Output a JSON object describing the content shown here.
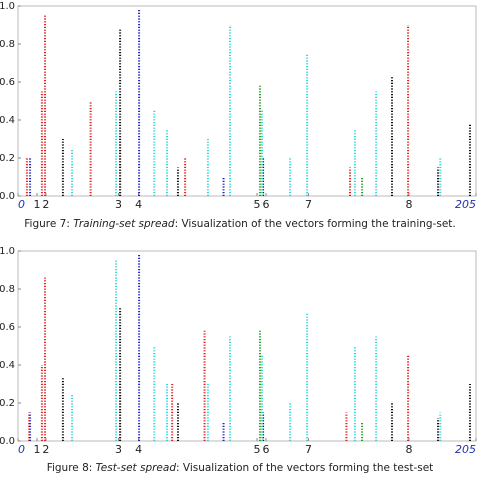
{
  "chart_data": [
    {
      "type": "strip",
      "xlim": [
        0,
        205
      ],
      "ylim": [
        0,
        1
      ],
      "xticks": [
        {
          "value": 0,
          "label": "0"
        },
        {
          "value": 8.5,
          "label": "1"
        },
        {
          "value": 12.5,
          "label": "2"
        },
        {
          "value": 45,
          "label": "3"
        },
        {
          "value": 54,
          "label": "4"
        },
        {
          "value": 107,
          "label": "5"
        },
        {
          "value": 111,
          "label": "6"
        },
        {
          "value": 130,
          "label": "7"
        },
        {
          "value": 175,
          "label": "8"
        },
        {
          "value": 205,
          "label": "205"
        }
      ],
      "yticks": [
        {
          "value": 0,
          "label": "0.0"
        },
        {
          "value": 0.2,
          "label": "0.2"
        },
        {
          "value": 0.4,
          "label": "0.4"
        },
        {
          "value": 0.6,
          "label": "0.6"
        },
        {
          "value": 0.8,
          "label": "0.8"
        },
        {
          "value": 1,
          "label": "1.0"
        }
      ],
      "series": [
        {
          "color": "#e02020",
          "x": [
            12.1,
            10.7,
            174.6,
            45.7,
            74.8,
            148.6,
            4,
            32.5
          ],
          "values": [
            0.95,
            0.55,
            0.9,
            0.3,
            0.2,
            0.15,
            0.2,
            0.5
          ]
        },
        {
          "color": "#111111",
          "x": [
            45.7,
            20.1,
            167.4,
            202.3,
            109.7,
            71.6,
            188
          ],
          "values": [
            0.88,
            0.3,
            0.63,
            0.38,
            0.2,
            0.15,
            0.15
          ]
        },
        {
          "color": "#30d8d8",
          "x": [
            129.4,
            94.9,
            43.9,
            66.7,
            109.2,
            150.8,
            24.2,
            85,
            121.8,
            189,
            160.3,
            61
          ],
          "values": [
            0.75,
            0.9,
            0.55,
            0.35,
            0.45,
            0.35,
            0.25,
            0.3,
            0.2,
            0.2,
            0.55,
            0.45
          ]
        },
        {
          "color": "#2020c8",
          "x": [
            54.2,
            5.4,
            92
          ],
          "values": [
            0.98,
            0.2,
            0.1
          ]
        },
        {
          "color": "#20a020",
          "x": [
            108.3,
            154
          ],
          "values": [
            0.58,
            0.1
          ]
        }
      ],
      "caption": {
        "label": "Figure 7: ",
        "emph": "Training-set spread",
        "rest": ": Visualization of the vectors forming the training-set."
      }
    },
    {
      "type": "strip",
      "xlim": [
        0,
        205
      ],
      "ylim": [
        0,
        1
      ],
      "xticks": [
        {
          "value": 0,
          "label": "0"
        },
        {
          "value": 8.5,
          "label": "1"
        },
        {
          "value": 12.5,
          "label": "2"
        },
        {
          "value": 45,
          "label": "3"
        },
        {
          "value": 54,
          "label": "4"
        },
        {
          "value": 107,
          "label": "5"
        },
        {
          "value": 111,
          "label": "6"
        },
        {
          "value": 130,
          "label": "7"
        },
        {
          "value": 175,
          "label": "8"
        },
        {
          "value": 205,
          "label": "205"
        }
      ],
      "yticks": [
        {
          "value": 0,
          "label": "0.0"
        },
        {
          "value": 0.2,
          "label": "0.2"
        },
        {
          "value": 0.4,
          "label": "0.4"
        },
        {
          "value": 0.6,
          "label": "0.6"
        },
        {
          "value": 0.8,
          "label": "0.8"
        },
        {
          "value": 1,
          "label": "1.0"
        }
      ],
      "series": [
        {
          "color": "#e02020",
          "x": [
            12.1,
            10.7,
            174.6,
            45.7,
            83.5,
            147,
            5,
            69
          ],
          "values": [
            0.86,
            0.4,
            0.45,
            0.3,
            0.58,
            0.15,
            0.15,
            0.3
          ]
        },
        {
          "color": "#111111",
          "x": [
            45.7,
            20.1,
            167.4,
            202.3,
            109.7,
            71.6,
            188
          ],
          "values": [
            0.7,
            0.33,
            0.2,
            0.3,
            0.15,
            0.2,
            0.12
          ]
        },
        {
          "color": "#30d8d8",
          "x": [
            129.4,
            94.9,
            43.9,
            66.7,
            109.2,
            150.8,
            24.2,
            85,
            121.8,
            189,
            160.3,
            61
          ],
          "values": [
            0.67,
            0.55,
            0.95,
            0.3,
            0.45,
            0.5,
            0.25,
            0.3,
            0.2,
            0.15,
            0.55,
            0.5
          ]
        },
        {
          "color": "#2020c8",
          "x": [
            54.2,
            5.4,
            92
          ],
          "values": [
            0.98,
            0.15,
            0.1
          ]
        },
        {
          "color": "#20a020",
          "x": [
            108.3,
            154
          ],
          "values": [
            0.58,
            0.1
          ]
        }
      ],
      "caption": {
        "label": "Figure 8: ",
        "emph": "Test-set spread",
        "rest": ": Visualization of the vectors forming the test-set"
      }
    }
  ]
}
